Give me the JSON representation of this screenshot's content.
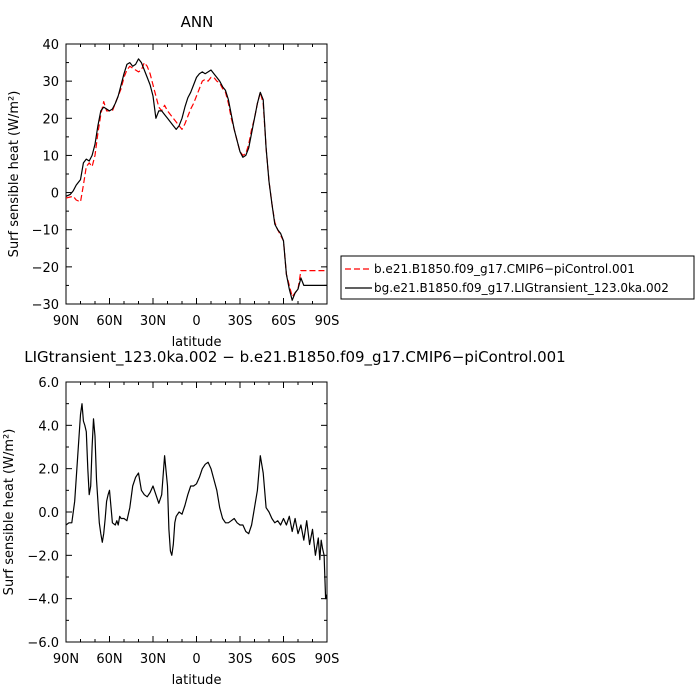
{
  "chart_data": [
    {
      "type": "line",
      "title": "ANN",
      "xlabel": "latitude",
      "ylabel": "Surf sensible heat  (W/m²)",
      "xlim": [
        90,
        -90
      ],
      "ylim": [
        -30,
        40
      ],
      "x_ticks": [
        90,
        60,
        30,
        0,
        -30,
        -60,
        -90
      ],
      "x_tick_labels": [
        "90N",
        "60N",
        "30N",
        "0",
        "30S",
        "60S",
        "90S"
      ],
      "y_ticks": [
        -30,
        -20,
        -10,
        0,
        10,
        20,
        30,
        40
      ],
      "y_tick_labels": [
        "−30",
        "−20",
        "−10",
        "0",
        "10",
        "20",
        "30",
        "40"
      ],
      "grid": false,
      "legend_position": "right",
      "series": [
        {
          "name": "b.e21.B1850.f09_g17.CMIP6−piControl.001",
          "color": "#ff0000",
          "dash": "dashed",
          "x": [
            90,
            87,
            85,
            83,
            80,
            78,
            76,
            74,
            72,
            70,
            68,
            66,
            64,
            62,
            60,
            58,
            56,
            54,
            52,
            50,
            48,
            46,
            44,
            42,
            40,
            38,
            36,
            34,
            32,
            30,
            28,
            26,
            24,
            22,
            20,
            18,
            16,
            14,
            12,
            10,
            8,
            6,
            4,
            2,
            0,
            -2,
            -4,
            -6,
            -8,
            -10,
            -12,
            -14,
            -16,
            -18,
            -20,
            -22,
            -24,
            -26,
            -28,
            -30,
            -32,
            -34,
            -36,
            -38,
            -40,
            -42,
            -44,
            -46,
            -48,
            -50,
            -52,
            -54,
            -56,
            -58,
            -60,
            -62,
            -64,
            -66,
            -68,
            -70,
            -72,
            -74,
            -76,
            -78,
            -80,
            -82,
            -84,
            -86,
            -88,
            -90
          ],
          "y": [
            -1.5,
            -1.2,
            -1.0,
            -2.0,
            -2.5,
            2,
            7,
            8,
            7,
            10,
            16,
            21,
            24.5,
            22,
            22,
            22,
            24,
            26,
            28,
            31,
            33,
            34,
            33.5,
            33,
            32.5,
            33,
            35,
            34,
            32,
            29,
            26,
            23,
            22,
            23.5,
            22,
            21,
            20,
            19,
            18,
            17,
            18.5,
            20.5,
            22.5,
            24,
            26,
            28,
            30,
            30.5,
            30,
            31,
            31,
            30,
            29.5,
            28,
            27,
            24,
            20,
            17,
            14,
            11,
            10,
            10.5,
            13,
            17,
            20,
            24,
            27,
            24,
            12,
            3,
            -3,
            -8,
            -10,
            -11.5,
            -13,
            -22,
            -25,
            -28,
            -27,
            -26,
            -21,
            -21,
            -21,
            -21,
            -21,
            -21,
            -21,
            -21,
            -21,
            -21
          ]
        },
        {
          "name": "bg.e21.B1850.f09_g17.LIGtransient_123.0ka.002",
          "color": "#000000",
          "dash": "solid",
          "x": [
            90,
            87,
            85,
            83,
            80,
            78,
            76,
            74,
            72,
            70,
            68,
            66,
            64,
            62,
            60,
            58,
            56,
            54,
            52,
            50,
            48,
            46,
            44,
            42,
            40,
            38,
            36,
            34,
            32,
            30,
            28,
            26,
            24,
            22,
            20,
            18,
            16,
            14,
            12,
            10,
            8,
            6,
            4,
            2,
            0,
            -2,
            -4,
            -6,
            -8,
            -10,
            -12,
            -14,
            -16,
            -18,
            -20,
            -22,
            -24,
            -26,
            -28,
            -30,
            -32,
            -34,
            -36,
            -38,
            -40,
            -42,
            -44,
            -46,
            -48,
            -50,
            -52,
            -54,
            -56,
            -58,
            -60,
            -62,
            -64,
            -66,
            -68,
            -70,
            -72,
            -74,
            -76,
            -78,
            -80,
            -82,
            -84,
            -86,
            -88,
            -90
          ],
          "y": [
            -1.0,
            -0.5,
            0.5,
            2.0,
            3.5,
            8,
            9,
            8.5,
            10,
            13,
            18,
            22,
            23,
            22.5,
            22,
            22.5,
            24,
            26,
            29,
            32,
            34.5,
            35,
            34,
            34.5,
            36,
            35,
            33,
            31,
            29,
            26,
            20,
            22,
            22,
            21,
            20,
            19,
            18,
            17,
            18,
            20,
            23,
            25.5,
            27,
            29,
            31,
            32,
            32.5,
            32,
            32.5,
            33,
            32,
            31,
            30,
            28.5,
            27.5,
            25,
            21,
            17,
            14,
            11,
            9.5,
            10,
            12,
            16,
            20,
            24,
            27,
            25,
            12,
            3,
            -3,
            -8.5,
            -10,
            -11,
            -13,
            -22,
            -26,
            -29,
            -27,
            -26,
            -23,
            -25,
            -25,
            -25,
            -25,
            -25,
            -25,
            -25,
            -25,
            -25
          ]
        }
      ]
    },
    {
      "type": "line",
      "title": "LIGtransient_123.0ka.002 − b.e21.B1850.f09_g17.CMIP6−piControl.001",
      "xlabel": "latitude",
      "ylabel": "Surf sensible heat  (W/m²)",
      "xlim": [
        90,
        -90
      ],
      "ylim": [
        -6,
        6
      ],
      "x_ticks": [
        90,
        60,
        30,
        0,
        -30,
        -60,
        -90
      ],
      "x_tick_labels": [
        "90N",
        "60N",
        "30N",
        "0",
        "30S",
        "60S",
        "90S"
      ],
      "y_ticks": [
        -6,
        -4,
        -2,
        0,
        2,
        4,
        6
      ],
      "y_tick_labels": [
        "−6.0",
        "−4.0",
        "−2.0",
        "0.0",
        "2.0",
        "4.0",
        "6.0"
      ],
      "grid": false,
      "series": [
        {
          "color": "#000000",
          "dash": "solid",
          "x": [
            90,
            88,
            86,
            84,
            82,
            80,
            79,
            78,
            77,
            76,
            75,
            74,
            73,
            72,
            71,
            70,
            69,
            68,
            67,
            66,
            65,
            64,
            63,
            62,
            61,
            60,
            58,
            56,
            55,
            54,
            53,
            52,
            50,
            48,
            46,
            44,
            42,
            40,
            38,
            36,
            34,
            32,
            30,
            28,
            26,
            24,
            22,
            20,
            19,
            18,
            17,
            16,
            15,
            14,
            12,
            10,
            8,
            6,
            4,
            2,
            0,
            -2,
            -4,
            -6,
            -8,
            -10,
            -12,
            -14,
            -16,
            -18,
            -20,
            -22,
            -24,
            -26,
            -28,
            -30,
            -32,
            -34,
            -36,
            -38,
            -40,
            -42,
            -44,
            -46,
            -48,
            -50,
            -52,
            -54,
            -56,
            -58,
            -60,
            -62,
            -64,
            -66,
            -68,
            -70,
            -72,
            -74,
            -76,
            -78,
            -80,
            -82,
            -84,
            -85,
            -86,
            -87,
            -88,
            -89,
            -90
          ],
          "y": [
            -0.6,
            -0.5,
            -0.5,
            0.5,
            2.5,
            4.5,
            5.0,
            4.2,
            4.0,
            3.7,
            2.0,
            0.8,
            1.2,
            3.0,
            4.3,
            3.5,
            1.5,
            0.5,
            -0.5,
            -1.0,
            -1.4,
            -1.0,
            -0.3,
            0.5,
            0.8,
            1.0,
            -0.5,
            -0.6,
            -0.4,
            -0.6,
            -0.2,
            -0.3,
            -0.3,
            -0.4,
            0.2,
            1.2,
            1.6,
            1.8,
            1.0,
            0.8,
            0.7,
            0.9,
            1.2,
            0.8,
            0.4,
            0.8,
            2.6,
            1.2,
            -0.8,
            -1.8,
            -2.0,
            -1.5,
            -0.5,
            -0.2,
            0.0,
            -0.1,
            0.3,
            0.8,
            1.2,
            1.2,
            1.3,
            1.6,
            2.0,
            2.2,
            2.3,
            2.0,
            1.5,
            1.0,
            0.2,
            -0.3,
            -0.5,
            -0.5,
            -0.4,
            -0.3,
            -0.5,
            -0.6,
            -0.6,
            -0.9,
            -1.0,
            -0.6,
            0.2,
            1.0,
            2.6,
            1.8,
            0.2,
            0.0,
            -0.3,
            -0.5,
            -0.4,
            -0.6,
            -0.3,
            -0.6,
            -0.2,
            -0.9,
            -0.3,
            -1.0,
            -0.6,
            -1.3,
            -0.4,
            -1.5,
            -0.8,
            -2.0,
            -1.2,
            -2.2,
            -1.3,
            -1.7,
            -2.0,
            -4.0,
            -3.8
          ]
        }
      ]
    }
  ]
}
